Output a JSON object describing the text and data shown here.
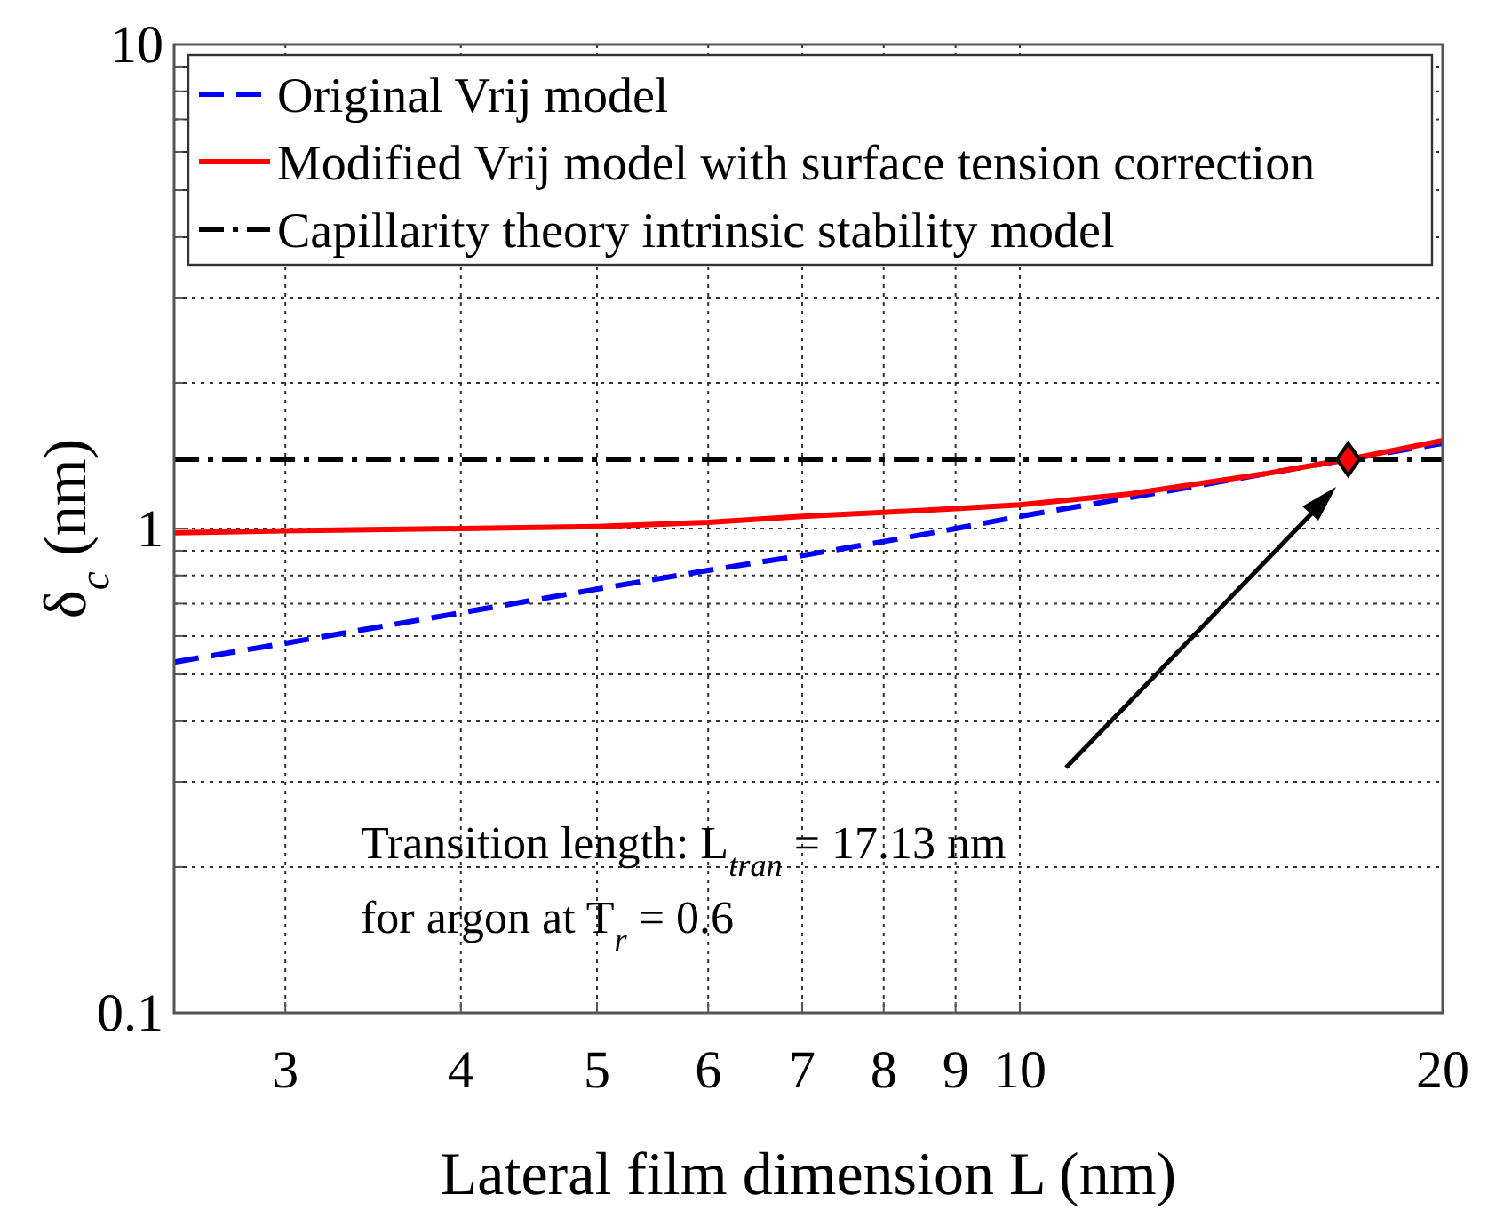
{
  "chart_data": {
    "type": "line",
    "xlabel": "Lateral film dimension L (nm)",
    "ylabel": "δ$_{c}$ (nm)",
    "log": "xy",
    "xlim": [
      2.5,
      20
    ],
    "ylim": [
      0.1,
      10
    ],
    "xticks": [
      3,
      4,
      5,
      6,
      7,
      8,
      9,
      10,
      20
    ],
    "yticks": [
      0.1,
      {
        "value": 0.2,
        "label": null
      },
      {
        "value": 0.3,
        "label": null
      },
      {
        "value": 0.4,
        "label": null
      },
      {
        "value": 0.5,
        "label": null
      },
      {
        "value": 0.6,
        "label": null
      },
      {
        "value": 0.7,
        "label": null
      },
      {
        "value": 0.8,
        "label": null
      },
      {
        "value": 0.9,
        "label": null
      },
      1,
      {
        "value": 2,
        "label": null
      },
      {
        "value": 3,
        "label": null
      },
      {
        "value": 4,
        "label": null
      },
      {
        "value": 5,
        "label": null
      },
      {
        "value": 6,
        "label": null
      },
      {
        "value": 7,
        "label": null
      },
      {
        "value": 8,
        "label": null
      },
      {
        "value": 9,
        "label": null
      },
      10
    ],
    "grid": true,
    "legend": "top",
    "series": [
      {
        "name": "Original Vrij model",
        "color": "#0000ff",
        "line_style": "dashed",
        "x": [
          2.5,
          3,
          4,
          5,
          6,
          7,
          8,
          9,
          10,
          12,
          15,
          17.13,
          20
        ],
        "values": [
          0.53,
          0.58,
          0.67,
          0.75,
          0.82,
          0.88,
          0.94,
          1.0,
          1.06,
          1.16,
          1.3,
          1.39,
          1.5
        ]
      },
      {
        "name": "Modified Vrij model with surface tension correction",
        "color": "#ff0000",
        "line_style": "solid",
        "x": [
          2.5,
          3,
          4,
          5,
          6,
          7,
          8,
          9,
          10,
          12,
          15,
          17.13,
          20
        ],
        "values": [
          0.98,
          0.99,
          1.0,
          1.01,
          1.03,
          1.06,
          1.08,
          1.1,
          1.12,
          1.18,
          1.3,
          1.39,
          1.52
        ]
      },
      {
        "name": "Capillarity theory intrinsic stability model",
        "color": "#000000",
        "line_style": "dashdot",
        "x": [
          2.5,
          20
        ],
        "values": [
          1.39,
          1.39
        ]
      },
      {
        "type": "scatter",
        "color": "#ff0000",
        "marker": "diamond",
        "x": [
          17.13
        ],
        "values": [
          1.39
        ]
      }
    ],
    "annotations": [
      "Transition length: L$_{tran}$ = 17.13 nm",
      "for argon at T$_{r}$ = 0.6"
    ]
  }
}
